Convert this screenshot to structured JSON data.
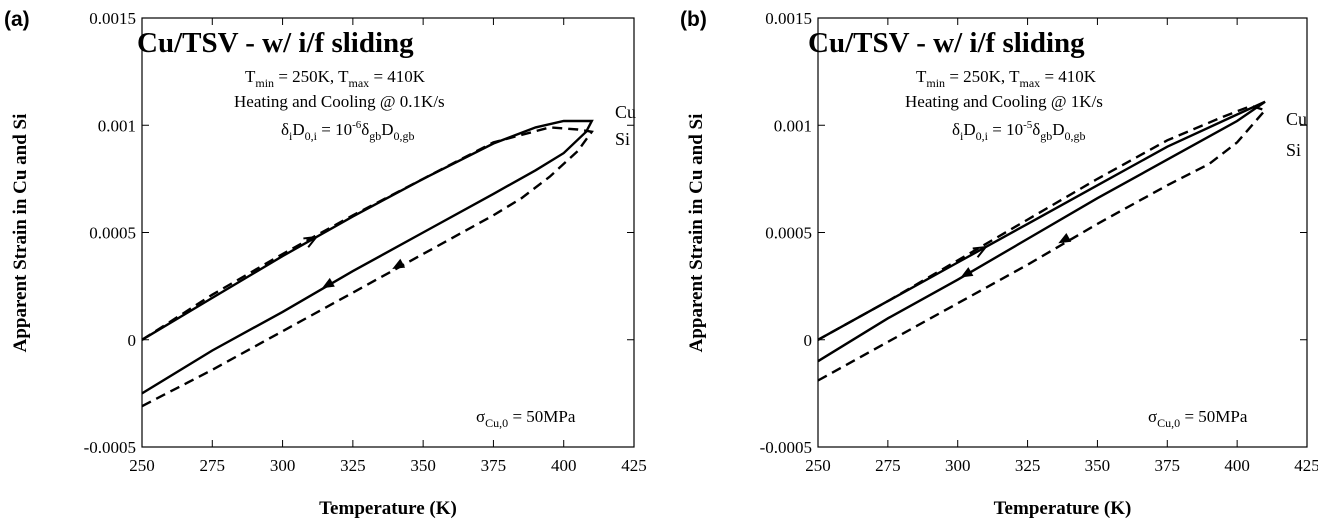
{
  "chart_data": [
    {
      "type": "line",
      "panel": "(a)",
      "title": "Cu/TSV - w/ i/f sliding",
      "xlabel": "Temperature (K)",
      "ylabel": "Apparent Strain in Cu and Si",
      "xlim": [
        250,
        425
      ],
      "ylim": [
        -0.0005,
        0.0015
      ],
      "xticks": [
        "250",
        "275",
        "300",
        "325",
        "350",
        "375",
        "400",
        "425"
      ],
      "yticks": [
        "-0.0005",
        "0",
        "0.0005",
        "0.001",
        "0.0015"
      ],
      "annotations": {
        "temps": {
          "T1": "T",
          "T1sub": "min",
          "T1val": " = 250K, ",
          "T2": "T",
          "T2sub": "max",
          "T2val": " = 410K"
        },
        "rate": "Heating and Cooling @ 0.1K/s",
        "diff": {
          "a": "δ",
          "asub": "i",
          "b": "D",
          "bsub": "0,i",
          "c": " = 10",
          "csup": "-6",
          "d": "δ",
          "dsub": "gb",
          "e": "D",
          "esub": "0,gb"
        },
        "stress": {
          "sym": "σ",
          "sub": "Cu,0",
          "val": " = 50MPa"
        }
      },
      "series": [
        {
          "name": "Cu",
          "style": "solid",
          "x": [
            250,
            275,
            300,
            325,
            350,
            375,
            390,
            400,
            410,
            408,
            400,
            390,
            375,
            350,
            325,
            300,
            275,
            250
          ],
          "y": [
            0.0,
            0.000195,
            0.00039,
            0.000575,
            0.00075,
            0.000915,
            0.00099,
            0.00102,
            0.00102,
            0.00097,
            0.00087,
            0.00079,
            0.00068,
            0.0005,
            0.00032,
            0.00013,
            -5e-05,
            -0.00025
          ]
        },
        {
          "name": "Si",
          "style": "dashed",
          "x": [
            250,
            275,
            300,
            325,
            350,
            375,
            385,
            395,
            405,
            410,
            405,
            395,
            375,
            350,
            325,
            300,
            275,
            250
          ],
          "y": [
            -0.00031,
            -0.00014,
            4e-05,
            0.00022,
            0.0004,
            0.00058,
            0.00066,
            0.00076,
            0.00088,
            0.00097,
            0.00098,
            0.00099,
            0.00092,
            0.00075,
            0.00058,
            0.0004,
            0.00021,
            0.0
          ]
        }
      ]
    },
    {
      "type": "line",
      "panel": "(b)",
      "title": "Cu/TSV - w/ i/f sliding",
      "xlabel": "Temperature (K)",
      "ylabel": "Apparent Strain in Cu and Si",
      "xlim": [
        250,
        425
      ],
      "ylim": [
        -0.0005,
        0.0015
      ],
      "xticks": [
        "250",
        "275",
        "300",
        "325",
        "350",
        "375",
        "400",
        "425"
      ],
      "yticks": [
        "-0.0005",
        "0",
        "0.0005",
        "0.001",
        "0.0015"
      ],
      "annotations": {
        "temps": {
          "T1": "T",
          "T1sub": "min",
          "T1val": " = 250K, ",
          "T2": "T",
          "T2sub": "max",
          "T2val": " = 410K"
        },
        "rate": "Heating and Cooling @ 1K/s",
        "diff": {
          "a": "δ",
          "asub": "i",
          "b": "D",
          "bsub": "0,i",
          "c": " = 10",
          "csup": "-5",
          "d": "δ",
          "dsub": "gb",
          "e": "D",
          "esub": "0,gb"
        },
        "stress": {
          "sym": "σ",
          "sub": "Cu,0",
          "val": " = 50MPa"
        }
      },
      "series": [
        {
          "name": "Cu",
          "style": "solid",
          "x": [
            250,
            275,
            300,
            325,
            350,
            375,
            400,
            410,
            400,
            375,
            350,
            325,
            300,
            275,
            250
          ],
          "y": [
            0.0,
            0.00018,
            0.00036,
            0.00054,
            0.00072,
            0.0009,
            0.00105,
            0.00111,
            0.00102,
            0.00084,
            0.00066,
            0.00047,
            0.00028,
            0.0001,
            -0.0001
          ]
        },
        {
          "name": "Si",
          "style": "dashed",
          "x": [
            250,
            275,
            300,
            325,
            350,
            375,
            390,
            400,
            410,
            405,
            395,
            375,
            350,
            325,
            300,
            275,
            250
          ],
          "y": [
            -0.00019,
            -1e-05,
            0.00017,
            0.00035,
            0.00054,
            0.00072,
            0.00082,
            0.00092,
            0.00107,
            0.00109,
            0.00104,
            0.00093,
            0.00075,
            0.00056,
            0.00037,
            0.00018,
            0.0
          ]
        }
      ]
    }
  ]
}
